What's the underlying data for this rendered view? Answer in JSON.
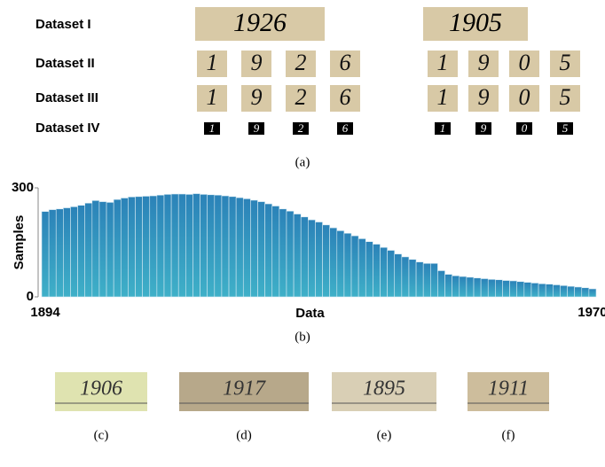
{
  "panel_a": {
    "caption": "(a)",
    "rows": [
      {
        "label": "Dataset I",
        "left": "1926",
        "right": "1905"
      },
      {
        "label": "Dataset II",
        "left": [
          "1",
          "9",
          "2",
          "6"
        ],
        "right": [
          "1",
          "9",
          "0",
          "5"
        ]
      },
      {
        "label": "Dataset III",
        "left": [
          "1",
          "9",
          "2",
          "6"
        ],
        "right": [
          "1",
          "9",
          "0",
          "5"
        ]
      },
      {
        "label": "Dataset IV",
        "left": [
          "1",
          "9",
          "2",
          "6"
        ],
        "right": [
          "1",
          "9",
          "0",
          "5"
        ]
      }
    ]
  },
  "chart_data": {
    "type": "bar",
    "caption": "(b)",
    "x_label": "Data",
    "y_label": "Samples",
    "color": "#2b82b8",
    "categories": [
      "1894",
      null,
      null,
      null,
      null,
      null,
      null,
      null,
      null,
      null,
      null,
      null,
      null,
      null,
      null,
      null,
      null,
      null,
      null,
      null,
      null,
      null,
      null,
      null,
      null,
      null,
      null,
      null,
      null,
      null,
      null,
      null,
      null,
      null,
      null,
      null,
      null,
      null,
      null,
      null,
      null,
      null,
      null,
      null,
      null,
      null,
      null,
      null,
      null,
      null,
      null,
      null,
      null,
      null,
      null,
      null,
      null,
      null,
      null,
      null,
      null,
      null,
      null,
      null,
      null,
      null,
      null,
      null,
      null,
      null,
      null,
      null,
      null,
      null,
      null,
      null,
      "1970"
    ],
    "values": [
      235,
      240,
      242,
      245,
      248,
      252,
      258,
      265,
      262,
      260,
      268,
      272,
      275,
      276,
      277,
      278,
      280,
      282,
      283,
      283,
      282,
      284,
      282,
      281,
      280,
      278,
      276,
      273,
      270,
      266,
      262,
      256,
      250,
      242,
      236,
      228,
      220,
      212,
      206,
      198,
      190,
      182,
      175,
      168,
      160,
      152,
      145,
      136,
      128,
      118,
      110,
      103,
      96,
      92,
      92,
      72,
      62,
      58,
      56,
      54,
      52,
      50,
      48,
      47,
      45,
      44,
      42,
      40,
      38,
      36,
      35,
      33,
      31,
      29,
      27,
      25,
      22
    ],
    "ylim": [
      0,
      300
    ],
    "yticks": [
      0,
      300
    ]
  },
  "samples": [
    {
      "text": "1906",
      "caption": "(c)"
    },
    {
      "text": "1917",
      "caption": "(d)"
    },
    {
      "text": "1895",
      "caption": "(e)"
    },
    {
      "text": "1911",
      "caption": "(f)"
    }
  ]
}
